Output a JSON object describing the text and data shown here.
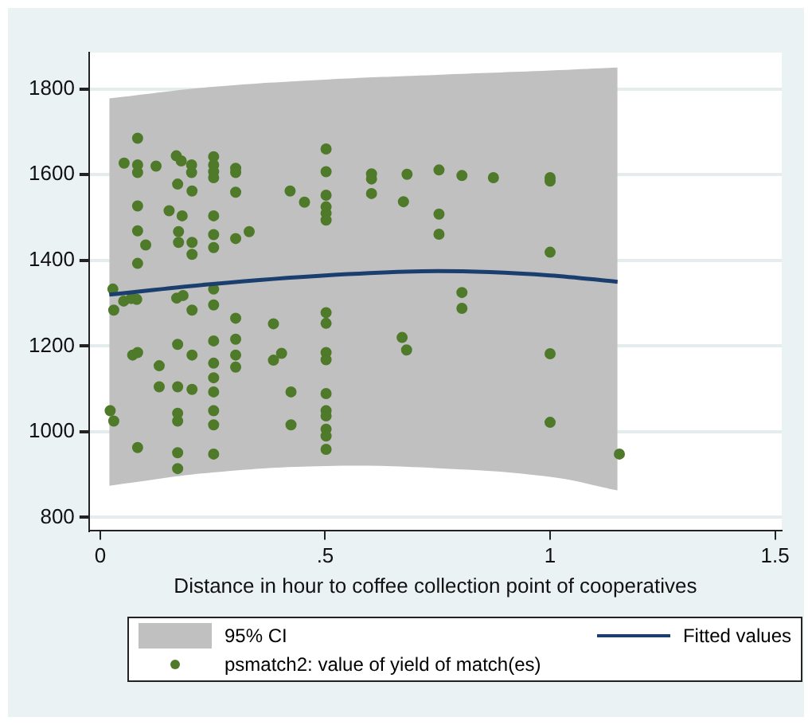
{
  "chart_data": {
    "type": "scatter",
    "xlabel": "Distance in hour to coffee collection point of cooperatives",
    "xlim": [
      -0.025,
      1.515
    ],
    "ylim": [
      770,
      1885
    ],
    "xticks": [
      0,
      {
        "value": 0.5,
        "label": ".5"
      },
      1,
      1.5
    ],
    "yticks": [
      800,
      1000,
      1200,
      1400,
      1600,
      1800
    ],
    "grid": "y",
    "legend": "bottom",
    "annotations": [
      "95% CI"
    ],
    "series": [
      {
        "name": "Fitted values",
        "type": "line",
        "color": "#1a3f6f",
        "line_style": "solid",
        "marker": "none",
        "x": [
          0.02,
          0.25,
          0.5,
          0.75,
          1.0,
          1.15
        ],
        "values": [
          1320,
          1345,
          1365,
          1375,
          1365,
          1350
        ],
        "lower": [
          874,
          905,
          920,
          915,
          895,
          863
        ],
        "upper": [
          1778,
          1805,
          1822,
          1833,
          1843,
          1850
        ]
      },
      {
        "name": "psmatch2: value of yield of match(es)",
        "color": "#4f7a2a",
        "marker": "circle",
        "x": [
          0.028,
          0.03,
          0.022,
          0.03,
          0.052,
          0.069,
          0.081,
          0.083,
          0.083,
          0.083,
          0.053,
          0.124,
          0.083,
          0.083,
          0.101,
          0.083,
          0.072,
          0.083,
          0.083,
          0.131,
          0.131,
          0.169,
          0.18,
          0.172,
          0.203,
          0.203,
          0.204,
          0.153,
          0.182,
          0.174,
          0.174,
          0.204,
          0.204,
          0.17,
          0.184,
          0.204,
          0.172,
          0.204,
          0.172,
          0.204,
          0.172,
          0.172,
          0.172,
          0.172,
          0.252,
          0.252,
          0.252,
          0.252,
          0.252,
          0.252,
          0.252,
          0.252,
          0.252,
          0.252,
          0.252,
          0.252,
          0.252,
          0.252,
          0.252,
          0.252,
          0.301,
          0.301,
          0.301,
          0.301,
          0.301,
          0.301,
          0.301,
          0.301,
          0.331,
          0.385,
          0.385,
          0.403,
          0.422,
          0.454,
          0.424,
          0.424,
          0.502,
          0.502,
          0.502,
          0.502,
          0.502,
          0.502,
          0.502,
          0.502,
          0.502,
          0.502,
          0.502,
          0.502,
          0.502,
          0.502,
          0.502,
          0.502,
          0.603,
          0.603,
          0.603,
          0.674,
          0.671,
          0.681,
          0.682,
          0.753,
          0.804,
          0.874,
          1.0,
          1.0,
          1.0,
          1.0,
          1.0,
          0.753,
          0.753,
          0.804,
          0.804,
          1.154
        ],
        "values": [
          1333,
          1284,
          1049,
          1025,
          1305,
          1311,
          1309,
          1685,
          1623,
          1605,
          1627,
          1620,
          1527,
          1469,
          1436,
          1393,
          1179,
          1185,
          963,
          1154,
          1105,
          1644,
          1632,
          1578,
          1605,
          1623,
          1562,
          1516,
          1504,
          1467,
          1442,
          1442,
          1414,
          1312,
          1318,
          1284,
          1204,
          1179,
          1105,
          1099,
          1043,
          1025,
          951,
          914,
          1642,
          1623,
          1607,
          1593,
          1504,
          1460,
          1430,
          1333,
          1296,
          1212,
          1160,
          1126,
          1093,
          1049,
          1016,
          948,
          1615,
          1605,
          1559,
          1451,
          1265,
          1216,
          1179,
          1151,
          1467,
          1252,
          1167,
          1183,
          1562,
          1536,
          1093,
          1016,
          1660,
          1607,
          1552,
          1525,
          1510,
          1494,
          1278,
          1253,
          1185,
          1168,
          1089,
          1049,
          1037,
          1006,
          990,
          959,
          1602,
          1590,
          1556,
          1537,
          1220,
          1191,
          1601,
          1611,
          1598,
          1593,
          1593,
          1585,
          1419,
          1182,
          1022,
          1508,
          1461,
          1325,
          1288,
          948
        ]
      }
    ]
  }
}
